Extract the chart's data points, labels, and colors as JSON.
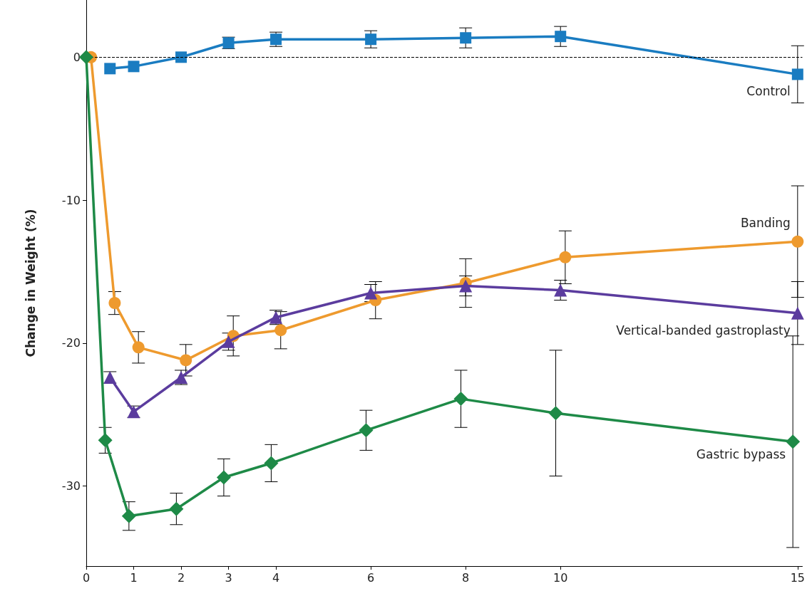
{
  "chart_data": {
    "type": "line",
    "ylabel": "Change in Weight (%)",
    "xlim": [
      0,
      15.1
    ],
    "ylim": [
      -35.6,
      4
    ],
    "xticks": [
      0,
      1,
      2,
      3,
      4,
      6,
      8,
      10,
      15
    ],
    "yticks": [
      0,
      -10,
      -20,
      -30
    ],
    "grid": false,
    "legend": false,
    "line_style": "solid",
    "ref_lines": [
      {
        "axis": "y",
        "value": 0,
        "color": "#000000",
        "line_style": "dashed"
      }
    ],
    "series": [
      {
        "name": "Control",
        "color": "#1a7cc1",
        "marker": "square",
        "x": [
          0.5,
          1,
          2,
          3,
          4,
          6,
          8,
          10,
          15
        ],
        "values": [
          -0.8,
          -0.65,
          0,
          1,
          1.25,
          1.25,
          1.35,
          1.45,
          -1.2
        ],
        "errors": [
          null,
          null,
          null,
          0.4,
          0.5,
          0.6,
          0.7,
          0.7,
          2
        ]
      },
      {
        "name": "Banding",
        "color": "#ee9a2e",
        "marker": "circle",
        "x": [
          0.1,
          0.6,
          1.1,
          2.1,
          3.1,
          4.1,
          6.1,
          8,
          10.1,
          15
        ],
        "values": [
          0,
          -17.2,
          -20.3,
          -21.2,
          -19.5,
          -19.1,
          -17,
          -15.8,
          -14,
          -12.9
        ],
        "errors": [
          null,
          0.8,
          1.1,
          1.1,
          1.4,
          1.3,
          1.3,
          1.7,
          1.85,
          3.9
        ]
      },
      {
        "name": "Vertical-banded gastroplasty",
        "color": "#5b3c9e",
        "marker": "triangle",
        "x": [
          0.5,
          1,
          2,
          3,
          4,
          6,
          8,
          10,
          15
        ],
        "values": [
          -22.4,
          -24.8,
          -22.4,
          -19.9,
          -18.2,
          -16.5,
          -16,
          -16.3,
          -17.9
        ],
        "errors": [
          0.4,
          0.4,
          0.5,
          0.6,
          0.5,
          0.6,
          0.7,
          0.7,
          2.2
        ]
      },
      {
        "name": "Gastric bypass",
        "color": "#1e8a47",
        "marker": "diamond",
        "x": [
          0,
          0.4,
          0.9,
          1.9,
          2.9,
          3.9,
          5.9,
          7.9,
          9.9,
          14.9
        ],
        "values": [
          0,
          -26.8,
          -32.1,
          -31.6,
          -29.4,
          -28.4,
          -26.1,
          -23.9,
          -24.9,
          -26.9
        ],
        "errors": [
          null,
          0.9,
          1,
          1.1,
          1.3,
          1.3,
          1.4,
          2,
          4.4,
          7.4
        ]
      }
    ]
  }
}
